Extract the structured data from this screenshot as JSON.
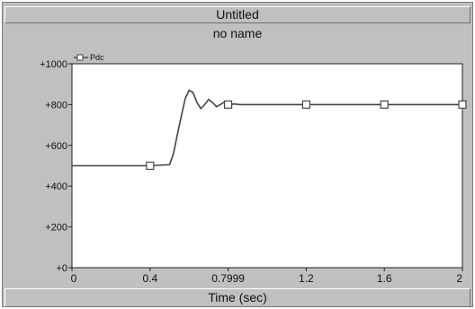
{
  "window": {
    "title": "Untitled"
  },
  "chart_data": {
    "type": "line",
    "title": "no name",
    "xlabel": "Time (sec)",
    "ylabel": "",
    "xlim": [
      0,
      2
    ],
    "ylim": [
      0,
      1000
    ],
    "xticks": [
      0,
      0.4,
      0.7999,
      1.2,
      1.6,
      2
    ],
    "xtick_labels": [
      "0",
      "0.4",
      "0.7999",
      "1.2",
      "1.6",
      "2"
    ],
    "yticks": [
      0,
      200,
      400,
      600,
      800,
      1000
    ],
    "ytick_labels": [
      "+0",
      "+200",
      "+400",
      "+600",
      "+800",
      "+1000"
    ],
    "grid": false,
    "legend": "top-left",
    "series": [
      {
        "name": "Pdc",
        "color": "#444444",
        "marker": "square",
        "x": [
          0,
          0.1,
          0.2,
          0.3,
          0.4,
          0.5,
          0.52,
          0.55,
          0.58,
          0.6,
          0.62,
          0.64,
          0.66,
          0.68,
          0.7,
          0.72,
          0.74,
          0.76,
          0.78,
          0.8,
          0.83,
          0.86,
          0.9,
          1.0,
          1.2,
          1.4,
          1.6,
          1.8,
          2.0
        ],
        "y": [
          500,
          500,
          500,
          500,
          500,
          505,
          560,
          700,
          830,
          870,
          860,
          810,
          780,
          800,
          825,
          810,
          790,
          800,
          812,
          797,
          803,
          800,
          800,
          800,
          800,
          800,
          800,
          800,
          800
        ],
        "marker_x": [
          0.4,
          0.7999,
          1.2,
          1.6,
          2.0
        ],
        "marker_y": [
          500,
          800,
          800,
          800,
          800
        ]
      }
    ]
  }
}
